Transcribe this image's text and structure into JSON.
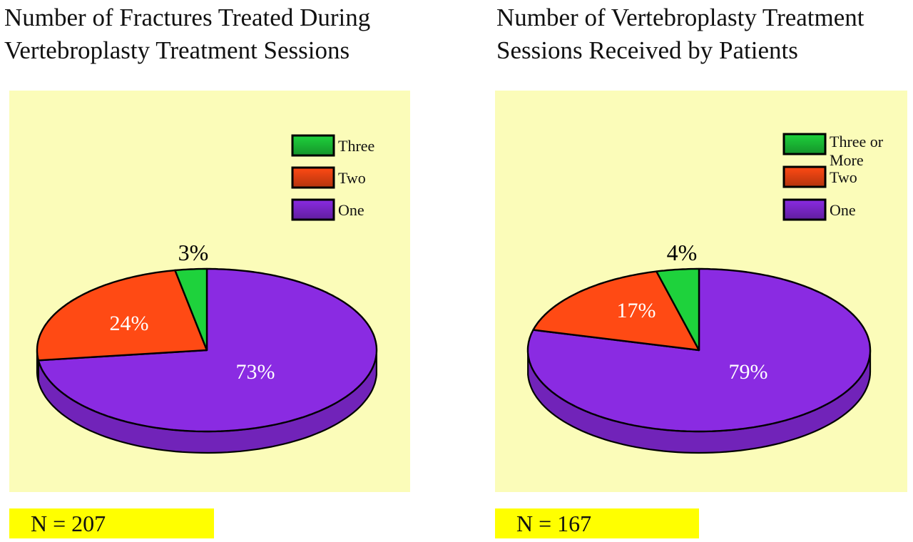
{
  "chart_data": [
    {
      "type": "pie",
      "title_lines": [
        "Number of Fractures Treated During",
        "Vertebroplasty Treatment Sessions"
      ],
      "categories": [
        "One",
        "Two",
        "Three"
      ],
      "values": [
        73,
        24,
        3
      ],
      "labels": [
        "73%",
        "24%",
        "3%"
      ],
      "legend": [
        "Three",
        "Two",
        "One"
      ],
      "legend_position": "top-right",
      "n_label": "N = 207",
      "colors": {
        "One": "#8a2be2",
        "Two": "#ff4a14",
        "Three": "#1ed23c"
      },
      "background": "#fbfcb9",
      "n_box_color": "#ffff00"
    },
    {
      "type": "pie",
      "title_lines": [
        "Number of Vertebroplasty Treatment",
        "Sessions Received by Patients"
      ],
      "categories": [
        "One",
        "Two",
        "Three or More"
      ],
      "values": [
        79,
        17,
        4
      ],
      "labels": [
        "79%",
        "17%",
        "4%"
      ],
      "legend": [
        "Three or More",
        "Two",
        "One"
      ],
      "legend_position": "top-right",
      "n_label": "N = 167",
      "colors": {
        "One": "#8a2be2",
        "Two": "#ff4a14",
        "Three or More": "#1ed23c"
      },
      "background": "#fbfcb9",
      "n_box_color": "#ffff00"
    }
  ]
}
